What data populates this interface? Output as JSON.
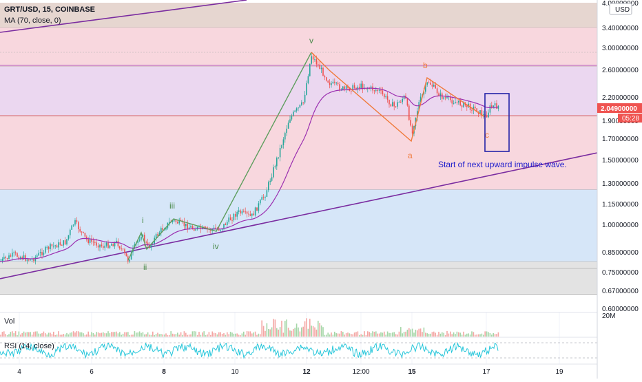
{
  "symbol": {
    "title": "GRT/USD, 15, COINBASE",
    "ma_legend": "MA (70, close, 0)"
  },
  "price_axis": {
    "currency": "USD",
    "ticks": [
      "4.00000000",
      "3.40000000",
      "3.00000000",
      "2.60000000",
      "2.20000000",
      "1.90000000",
      "1.70000000",
      "1.50000000",
      "1.30000000",
      "1.15000000",
      "1.00000000",
      "0.85000000",
      "0.75000000",
      "0.67000000",
      "0.60000000"
    ],
    "current_price": "2.04900000",
    "countdown": "05:28",
    "current_price_color": "#ef5350"
  },
  "time_axis": {
    "ticks": [
      "4",
      "6",
      "8",
      "10",
      "12",
      "12:00",
      "15",
      "17",
      "19"
    ],
    "bold_ticks": [
      "8",
      "12",
      "15"
    ]
  },
  "volume_panel": {
    "label": "Vol",
    "scale": "20M"
  },
  "rsi_panel": {
    "label": "RSI (14, close)"
  },
  "zones": [
    {
      "name": "zone-0",
      "from": 3.4,
      "to": 4.0,
      "color": "#e6d6d0"
    },
    {
      "name": "zone-1",
      "from": 2.65,
      "to": 3.4,
      "color": "#f8d7de"
    },
    {
      "name": "zone-2",
      "from": 1.95,
      "to": 2.65,
      "color": "#ebd7f0"
    },
    {
      "name": "zone-3",
      "from": 1.25,
      "to": 1.95,
      "color": "#f8d7de"
    },
    {
      "name": "zone-4",
      "from": 0.8,
      "to": 1.25,
      "color": "#d6e6f8"
    },
    {
      "name": "zone-5",
      "from": 0.655,
      "to": 0.8,
      "color": "#e3e3e3"
    }
  ],
  "wave_labels": {
    "impulse": [
      {
        "label": "i",
        "color": "#4a8a4a"
      },
      {
        "label": "ii",
        "color": "#4a8a4a"
      },
      {
        "label": "iii",
        "color": "#4a8a4a"
      },
      {
        "label": "iv",
        "color": "#4a8a4a"
      },
      {
        "label": "v",
        "color": "#4a8a4a"
      }
    ],
    "correction": [
      {
        "label": "a",
        "color": "#f07a3a"
      },
      {
        "label": "b",
        "color": "#f07a3a"
      },
      {
        "label": "c",
        "color": "#f07a3a"
      }
    ]
  },
  "annotation": {
    "text": "Start of next upward impulse wave.",
    "color": "#1a1acc"
  },
  "colors": {
    "trendline": "#7a2ca0",
    "ma": "#9b2fb0",
    "impulse_line": "#5e9e5e",
    "correction_line": "#f07a3a",
    "up_candle": "#26a69a",
    "down_candle": "#ef5350",
    "rsi": "#26c6da",
    "box": "#2323a8"
  }
}
